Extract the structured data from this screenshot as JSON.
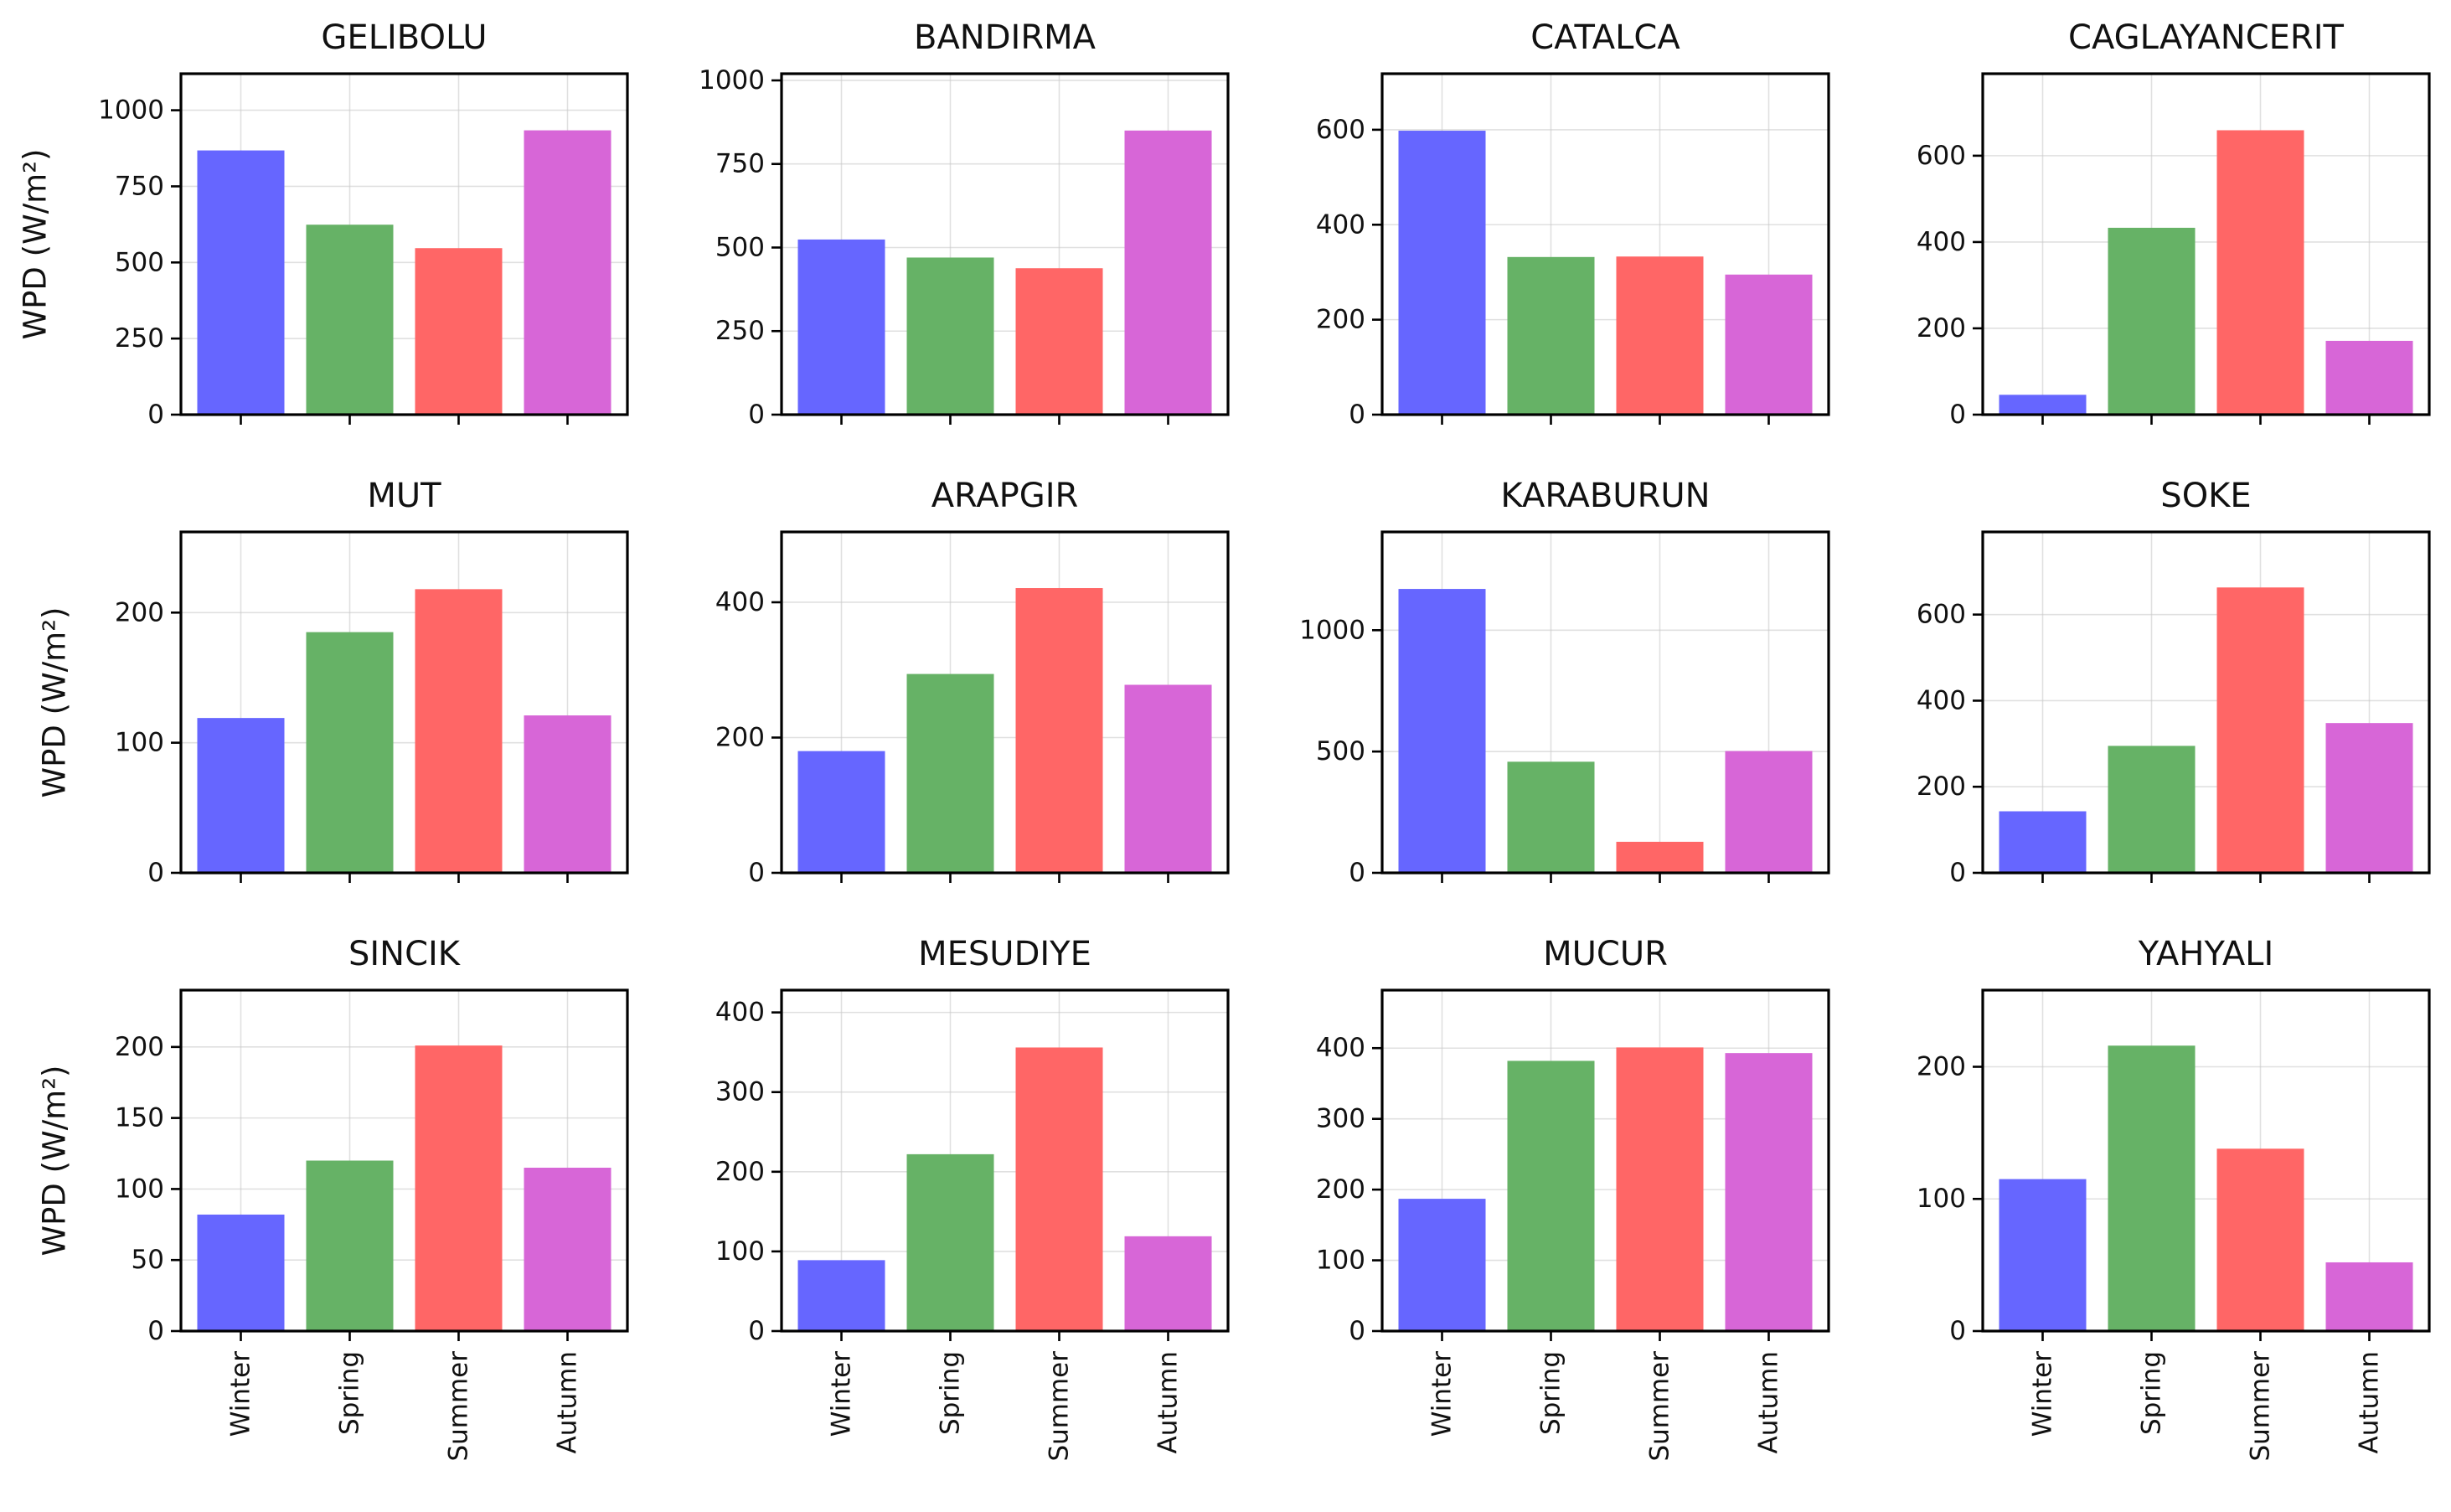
{
  "chart_data": {
    "type": "bar",
    "layout": "3x4 grid of subplots",
    "categories": [
      "Winter",
      "Spring",
      "Summer",
      "Autumn"
    ],
    "ylabel": "WPD (W/m²)",
    "colors": [
      "#6666ff",
      "#66b266",
      "#ff6666",
      "#d766d7"
    ],
    "grid": true,
    "subplots": [
      {
        "title": "GELIBOLU",
        "values": [
          868,
          624,
          547,
          934
        ],
        "ylim": [
          0,
          1120
        ],
        "yticks": [
          0,
          250,
          500,
          750,
          1000
        ]
      },
      {
        "title": "BANDIRMA",
        "values": [
          524,
          470,
          438,
          850
        ],
        "ylim": [
          0,
          1020
        ],
        "yticks": [
          0,
          250,
          500,
          750,
          1000
        ]
      },
      {
        "title": "CATALCA",
        "values": [
          598,
          332,
          333,
          295
        ],
        "ylim": [
          0,
          718
        ],
        "yticks": [
          0,
          200,
          400,
          600
        ]
      },
      {
        "title": "CAGLAYANCERIT",
        "values": [
          46,
          433,
          659,
          171
        ],
        "ylim": [
          0,
          790
        ],
        "yticks": [
          0,
          200,
          400,
          600
        ]
      },
      {
        "title": "MUT",
        "values": [
          119,
          185,
          218,
          121
        ],
        "ylim": [
          0,
          262
        ],
        "yticks": [
          0,
          100,
          200
        ]
      },
      {
        "title": "ARAPGIR",
        "values": [
          180,
          294,
          421,
          278
        ],
        "ylim": [
          0,
          504
        ],
        "yticks": [
          0,
          200,
          400
        ]
      },
      {
        "title": "KARABURUN",
        "values": [
          1170,
          458,
          128,
          502
        ],
        "ylim": [
          0,
          1405
        ],
        "yticks": [
          0,
          500,
          1000
        ]
      },
      {
        "title": "SOKE",
        "values": [
          143,
          295,
          663,
          348
        ],
        "ylim": [
          0,
          792
        ],
        "yticks": [
          0,
          200,
          400,
          600
        ]
      },
      {
        "title": "SINCIK",
        "values": [
          82,
          120,
          201,
          115
        ],
        "ylim": [
          0,
          240
        ],
        "yticks": [
          0,
          50,
          100,
          150,
          200
        ]
      },
      {
        "title": "MESUDIYE",
        "values": [
          89,
          222,
          356,
          119
        ],
        "ylim": [
          0,
          428
        ],
        "yticks": [
          0,
          100,
          200,
          300,
          400
        ]
      },
      {
        "title": "MUCUR",
        "values": [
          187,
          382,
          401,
          393
        ],
        "ylim": [
          0,
          482
        ],
        "yticks": [
          0,
          100,
          200,
          300,
          400
        ]
      },
      {
        "title": "YAHYALI",
        "values": [
          115,
          216,
          138,
          52
        ],
        "ylim": [
          0,
          258
        ],
        "yticks": [
          0,
          100,
          200
        ]
      }
    ]
  }
}
